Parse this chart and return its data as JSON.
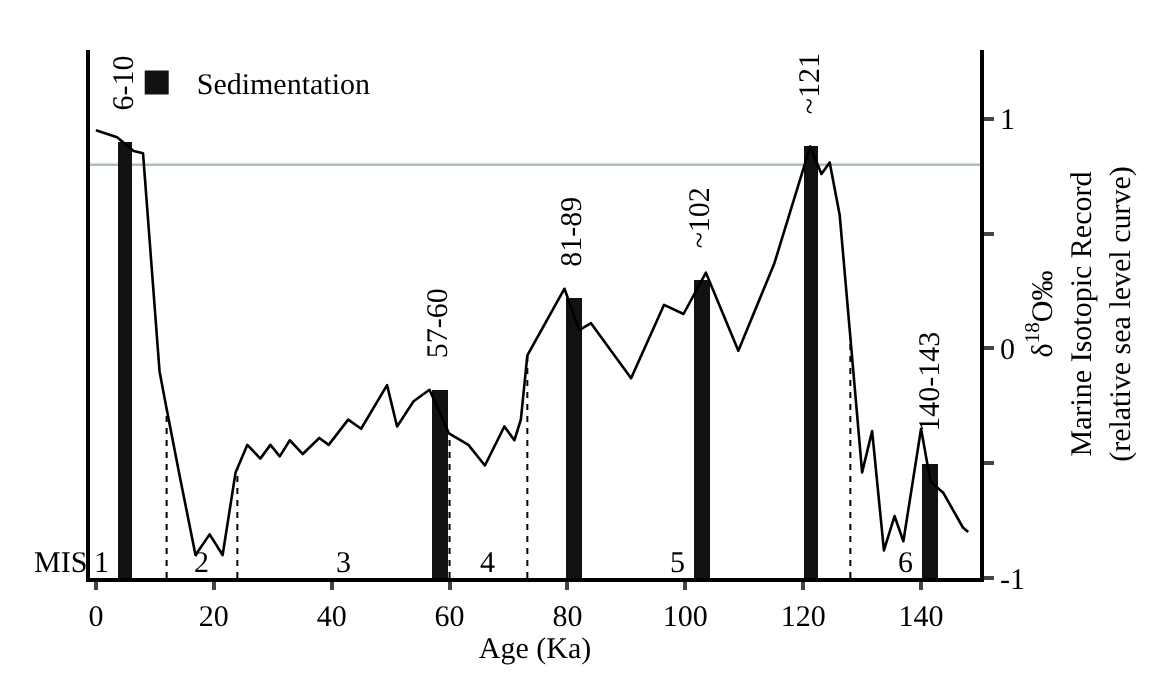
{
  "chart_data": {
    "type": "line",
    "xlabel": "Age (Ka)",
    "ylabel": "δ$^{18}$O‰\nMarine Isotopic Record\n(relative sea level curve)",
    "xlim": [
      -1,
      150
    ],
    "xticks": [
      0,
      20,
      40,
      60,
      80,
      100,
      120,
      140
    ],
    "ylim": [
      -1,
      1.3
    ],
    "yticks": [
      -1,
      {
        "value": -0.5,
        "label": null
      },
      0,
      {
        "value": 0.5,
        "label": null
      },
      1
    ],
    "grid": false,
    "legend": "top left",
    "series": [
      {
        "color": "#000000",
        "x": [
          0,
          3.6,
          6.4,
          8,
          10.8,
          11.9,
          14.1,
          16.9,
          19.3,
          21.5,
          23.7,
          25.7,
          27.9,
          29.6,
          31.2,
          32.9,
          35.1,
          37.9,
          39.5,
          42.8,
          45,
          49.4,
          51.1,
          53.9,
          56.6,
          59.9,
          63.2,
          66,
          69.3,
          71,
          72.1,
          73.2,
          79.5,
          82,
          84,
          90.8,
          96.4,
          99.7,
          103.5,
          109,
          115.1,
          121.2,
          123.1,
          124.5,
          126.2,
          130,
          131.7,
          133.7,
          135.5,
          137,
          140,
          141.6,
          143.8,
          147.1,
          148
        ],
        "values": [
          0.95,
          0.92,
          0.86,
          0.85,
          -0.1,
          -0.25,
          -0.54,
          -0.9,
          -0.81,
          -0.9,
          -0.54,
          -0.42,
          -0.48,
          -0.42,
          -0.47,
          -0.4,
          -0.46,
          -0.39,
          -0.42,
          -0.31,
          -0.35,
          -0.16,
          -0.34,
          -0.23,
          -0.18,
          -0.37,
          -0.42,
          -0.51,
          -0.34,
          -0.4,
          -0.31,
          -0.03,
          0.26,
          0.08,
          0.11,
          -0.13,
          0.19,
          0.15,
          0.33,
          -0.01,
          0.37,
          0.88,
          0.76,
          0.81,
          0.58,
          -0.54,
          -0.36,
          -0.88,
          -0.73,
          -0.84,
          -0.35,
          -0.58,
          -0.63,
          -0.78,
          -0.8
        ]
      },
      {
        "type": "bar",
        "name": "Sedimentation",
        "color": "#111111",
        "x": [
          4.9,
          58.3,
          81.1,
          102.8,
          121.3,
          141.6
        ],
        "base": [
          -1,
          -1,
          -1,
          -1,
          -1,
          -1
        ],
        "values": [
          1.9,
          0.82,
          1.22,
          1.3,
          1.88,
          0.5
        ]
      }
    ],
    "ref_lines": [
      {
        "axis": "y",
        "value": 0.8,
        "color": "#a8c0c0",
        "line_style": "solid"
      },
      {
        "axis": "x",
        "value": 12,
        "line_style": "dotted",
        "color": "#000000"
      },
      {
        "axis": "x",
        "value": 24,
        "line_style": "dotted",
        "color": "#000000"
      },
      {
        "axis": "x",
        "value": 60,
        "line_style": "dotted",
        "color": "#000000"
      },
      {
        "axis": "x",
        "value": 73.2,
        "line_style": "dotted",
        "color": "#000000"
      },
      {
        "axis": "x",
        "value": 128,
        "line_style": "dotted",
        "color": "#000000"
      }
    ],
    "annotations": [
      {
        "text": "6-10",
        "x": 4.9,
        "y": 0.9
      },
      {
        "text": "57-60",
        "x": 58.3,
        "y": -0.18
      },
      {
        "text": "81-89",
        "x": 81.1,
        "y": 0.22
      },
      {
        "text": "~102",
        "x": 102.8,
        "y": 0.3
      },
      {
        "text": "~121",
        "x": 121.3,
        "y": 0.88
      },
      {
        "text": "140-143",
        "x": 141.6,
        "y": -0.5
      },
      "MIS",
      "1",
      "2",
      "3",
      "4",
      "5",
      "6"
    ]
  }
}
